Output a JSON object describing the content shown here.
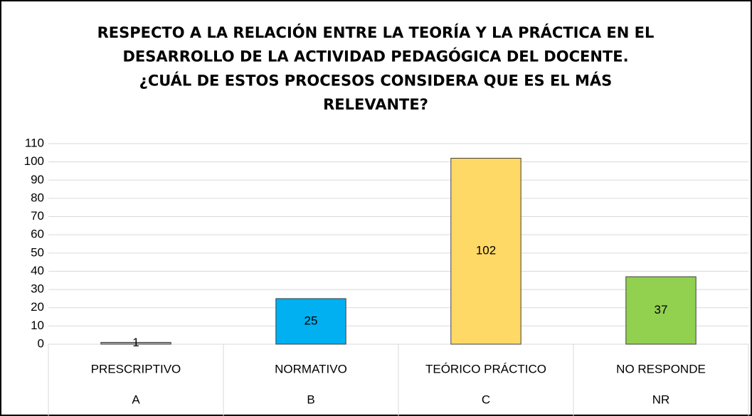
{
  "chart_data": {
    "type": "bar",
    "title": [
      "RESPECTO A LA RELACIÓN ENTRE LA TEORÍA Y LA PRÁCTICA EN EL",
      "DESARROLLO DE LA ACTIVIDAD PEDAGÓGICA DEL DOCENTE.",
      "¿CUÁL DE ESTOS PROCESOS CONSIDERA QUE ES EL MÁS",
      "RELEVANTE?"
    ],
    "categories": [
      "PRESCRIPTIVO",
      "NORMATIVO",
      "TEÓRICO PRÁCTICO",
      "NO RESPONDE"
    ],
    "category_groups": [
      "A",
      "B",
      "C",
      "NR"
    ],
    "values": [
      1,
      25,
      102,
      37
    ],
    "colors": [
      "#a6a6a6",
      "#00b0f0",
      "#ffd966",
      "#92d050"
    ],
    "ylim": [
      0,
      110
    ],
    "yticks": [
      0,
      10,
      20,
      30,
      40,
      50,
      60,
      70,
      80,
      90,
      100,
      110
    ],
    "grid": true
  }
}
